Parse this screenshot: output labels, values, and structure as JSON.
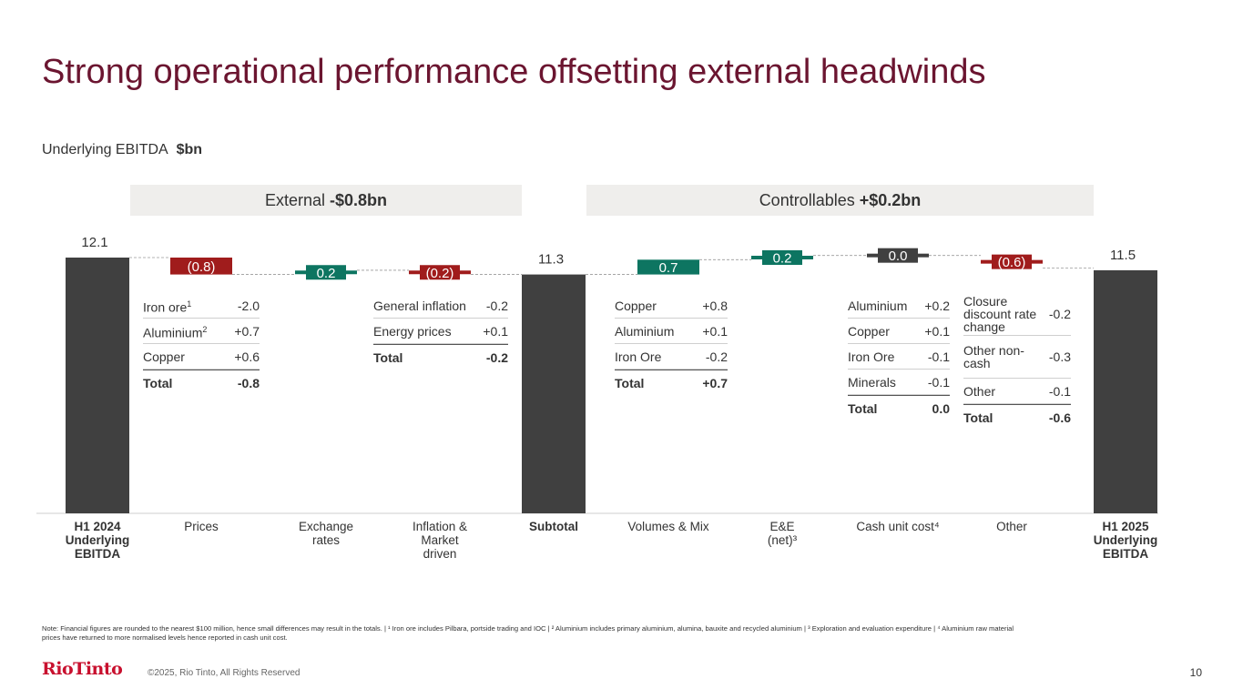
{
  "title": "Strong operational performance offsetting external headwinds",
  "subtitle": {
    "label": "Underlying EBITDA",
    "unit": "$bn"
  },
  "groups": {
    "external": {
      "label": "External",
      "value": "-$0.8bn"
    },
    "controllables": {
      "label": "Controllables",
      "value": "+$0.2bn"
    }
  },
  "colors": {
    "total": "#404040",
    "negative": "#a01c1c",
    "positive": "#0d7561",
    "neutral": "#404040",
    "title": "#6b1530"
  },
  "chart_data": {
    "type": "bar",
    "subtype": "waterfall",
    "title": "Underlying EBITDA $bn",
    "ylim": [
      0,
      12.1
    ],
    "steps": [
      {
        "category": [
          "H1 2024",
          "Underlying",
          "EBITDA"
        ],
        "bold": true,
        "kind": "total",
        "value": 12.1,
        "label": "12.1"
      },
      {
        "category": [
          "Prices"
        ],
        "bold": false,
        "kind": "delta",
        "value": -0.8,
        "label": "(0.8)"
      },
      {
        "category": [
          "Exchange",
          "rates"
        ],
        "bold": false,
        "kind": "delta",
        "value": 0.2,
        "label": "0.2"
      },
      {
        "category": [
          "Inflation &",
          "Market",
          "driven"
        ],
        "bold": false,
        "kind": "delta",
        "value": -0.2,
        "label": "(0.2)"
      },
      {
        "category": [
          "Subtotal"
        ],
        "bold": true,
        "kind": "total",
        "value": 11.3,
        "label": "11.3"
      },
      {
        "category": [
          "Volumes & Mix"
        ],
        "bold": false,
        "kind": "delta",
        "value": 0.7,
        "label": "0.7"
      },
      {
        "category": [
          "E&E",
          "(net)³"
        ],
        "bold": false,
        "kind": "delta",
        "value": 0.2,
        "label": "0.2"
      },
      {
        "category": [
          "Cash unit cost⁴"
        ],
        "bold": false,
        "kind": "delta",
        "value": 0.0,
        "label": "0.0"
      },
      {
        "category": [
          "Other"
        ],
        "bold": false,
        "kind": "delta",
        "value": -0.6,
        "label": "(0.6)"
      },
      {
        "category": [
          "H1 2025",
          "Underlying",
          "EBITDA"
        ],
        "bold": true,
        "kind": "total",
        "value": 11.5,
        "label": "11.5"
      }
    ]
  },
  "breakdowns": {
    "prices": {
      "rows": [
        {
          "label": "Iron ore",
          "sup": "1",
          "value": "-2.0"
        },
        {
          "label": "Aluminium",
          "sup": "2",
          "value": "+0.7"
        },
        {
          "label": "Copper",
          "sup": "",
          "value": "+0.6"
        }
      ],
      "total": {
        "label": "Total",
        "value": "-0.8"
      }
    },
    "inflation": {
      "rows": [
        {
          "label": "General inflation",
          "sup": "",
          "value": "-0.2"
        },
        {
          "label": "Energy prices",
          "sup": "",
          "value": "+0.1"
        }
      ],
      "total": {
        "label": "Total",
        "value": "-0.2"
      }
    },
    "volumes": {
      "rows": [
        {
          "label": "Copper",
          "sup": "",
          "value": "+0.8"
        },
        {
          "label": "Aluminium",
          "sup": "",
          "value": "+0.1"
        },
        {
          "label": "Iron Ore",
          "sup": "",
          "value": "-0.2"
        }
      ],
      "total": {
        "label": "Total",
        "value": "+0.7"
      }
    },
    "cash_unit_cost": {
      "rows": [
        {
          "label": "Aluminium",
          "sup": "",
          "value": "+0.2"
        },
        {
          "label": "Copper",
          "sup": "",
          "value": "+0.1"
        },
        {
          "label": "Iron Ore",
          "sup": "",
          "value": "-0.1"
        },
        {
          "label": "Minerals",
          "sup": "",
          "value": "-0.1"
        }
      ],
      "total": {
        "label": "Total",
        "value": "0.0"
      }
    },
    "other": {
      "rows": [
        {
          "label": "Closure discount rate change",
          "sup": "",
          "value": "-0.2",
          "tall": true
        },
        {
          "label": "Other non-cash",
          "sup": "",
          "value": "-0.3",
          "tall": true
        },
        {
          "label": "Other",
          "sup": "",
          "value": "-0.1"
        }
      ],
      "total": {
        "label": "Total",
        "value": "-0.6"
      }
    }
  },
  "footnote": "Note: Financial figures are rounded to the nearest $100 million, hence small differences may result in the totals. | ¹ Iron ore includes Pilbara, portside trading and IOC | ² Aluminium includes primary aluminium, alumina, bauxite and recycled aluminium | ³ Exploration and evaluation expenditure | ⁴ Aluminium raw material prices have returned to more normalised levels hence reported in cash unit cost.",
  "footer": {
    "logo": "RioTinto",
    "copyright": "©2025, Rio Tinto, All Rights Reserved",
    "page": "10"
  }
}
